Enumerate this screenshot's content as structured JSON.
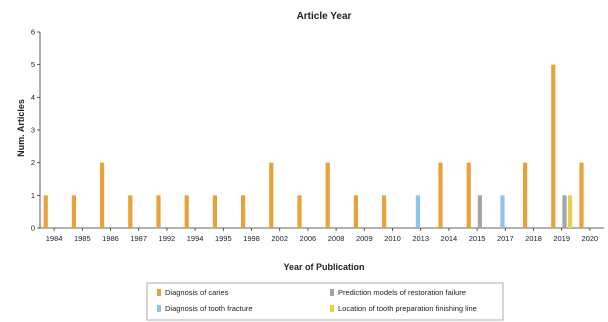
{
  "chart_data": {
    "type": "bar",
    "title": "Article Year",
    "xlabel": "Year of Publication",
    "ylabel": "Num. Articles",
    "ylim": [
      0,
      6
    ],
    "yticks": [
      0,
      1,
      2,
      3,
      4,
      5,
      6
    ],
    "grid": false,
    "legend_position": "bottom",
    "categories": [
      "1984",
      "1985",
      "1986",
      "1987",
      "1992",
      "1994",
      "1995",
      "1998",
      "2002",
      "2006",
      "2008",
      "2009",
      "2010",
      "2013",
      "2014",
      "2015",
      "2017",
      "2018",
      "2019",
      "2020"
    ],
    "series": [
      {
        "name": "Diagnosis of caries",
        "color": "#e8a23a",
        "values": [
          1,
          1,
          2,
          1,
          1,
          1,
          1,
          1,
          2,
          1,
          2,
          1,
          1,
          0,
          2,
          2,
          0,
          2,
          5,
          2
        ]
      },
      {
        "name": "Diagnosis of tooth fracture",
        "color": "#8ec3ea",
        "values": [
          0,
          0,
          0,
          0,
          0,
          0,
          0,
          0,
          0,
          0,
          0,
          0,
          0,
          1,
          0,
          0,
          1,
          0,
          0,
          0
        ]
      },
      {
        "name": "Prediction models of restoration failure",
        "color": "#a4a4a4",
        "values": [
          0,
          0,
          0,
          0,
          0,
          0,
          0,
          0,
          0,
          0,
          0,
          0,
          0,
          0,
          0,
          1,
          0,
          0,
          1,
          0
        ]
      },
      {
        "name": "Location of tooth preparation finishing line",
        "color": "#e9d04c",
        "values": [
          0,
          0,
          0,
          0,
          0,
          0,
          0,
          0,
          0,
          0,
          0,
          0,
          0,
          0,
          0,
          0,
          0,
          0,
          1,
          0
        ]
      }
    ]
  }
}
